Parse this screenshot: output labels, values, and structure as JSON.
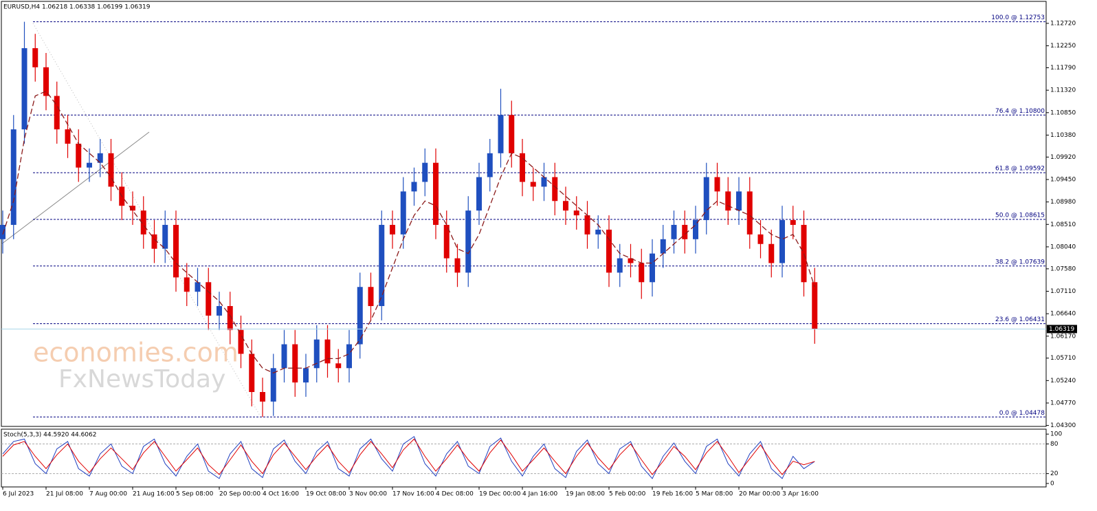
{
  "chart_data": [
    {
      "type": "candlestick",
      "title": "EURUSD,H4  1.06218 1.06338 1.06199 1.06319",
      "categories": [
        "6 Jul 2023",
        null,
        null,
        null,
        "21 Jul 08:00",
        null,
        null,
        null,
        "7 Aug 00:00",
        null,
        null,
        null,
        "21 Aug 16:00",
        null,
        null,
        null,
        "5 Sep 08:00",
        null,
        null,
        null,
        "20 Sep 00:00",
        null,
        null,
        null,
        "4 Oct 16:00",
        null,
        null,
        null,
        "19 Oct 08:00",
        null,
        null,
        null,
        "3 Nov 00:00",
        null,
        null,
        null,
        "17 Nov 16:00",
        null,
        null,
        null,
        "4 Dec 08:00",
        null,
        null,
        null,
        "19 Dec 00:00",
        null,
        null,
        null,
        "4 Jan 16:00",
        null,
        null,
        null,
        "19 Jan 08:00",
        null,
        null,
        null,
        "5 Feb 00:00",
        null,
        null,
        null,
        "19 Feb 16:00",
        null,
        null,
        null,
        "5 Mar 08:00",
        null,
        null,
        null,
        "20 Mar 00:00",
        null,
        null,
        null,
        "3 Apr 16:00",
        null,
        null,
        null
      ],
      "open": [
        1.082,
        1.085,
        1.105,
        1.122,
        1.118,
        1.112,
        1.105,
        1.102,
        1.097,
        1.098,
        1.1,
        1.093,
        1.089,
        1.088,
        1.083,
        1.08,
        1.085,
        1.074,
        1.071,
        1.073,
        1.066,
        1.068,
        1.063,
        1.058,
        1.05,
        1.048,
        1.055,
        1.06,
        1.052,
        1.055,
        1.061,
        1.056,
        1.055,
        1.06,
        1.072,
        1.068,
        1.085,
        1.083,
        1.092,
        1.094,
        1.098,
        1.085,
        1.078,
        1.075,
        1.088,
        1.095,
        1.1,
        1.108,
        1.1,
        1.094,
        1.093,
        1.095,
        1.09,
        1.088,
        1.087,
        1.083,
        1.084,
        1.075,
        1.078,
        1.077,
        1.073,
        1.079,
        1.082,
        1.085,
        1.082,
        1.086,
        1.095,
        1.092,
        1.088,
        1.092,
        1.083,
        1.081,
        1.077,
        1.086,
        1.085,
        1.073
      ],
      "high": [
        1.088,
        1.108,
        1.12753,
        1.125,
        1.121,
        1.115,
        1.108,
        1.105,
        1.101,
        1.103,
        1.103,
        1.096,
        1.092,
        1.091,
        1.086,
        1.088,
        1.088,
        1.077,
        1.076,
        1.076,
        1.071,
        1.071,
        1.066,
        1.061,
        1.053,
        1.058,
        1.063,
        1.063,
        1.058,
        1.064,
        1.064,
        1.059,
        1.063,
        1.075,
        1.075,
        1.088,
        1.088,
        1.095,
        1.097,
        1.101,
        1.101,
        1.088,
        1.081,
        1.091,
        1.098,
        1.103,
        1.1135,
        1.111,
        1.103,
        1.097,
        1.098,
        1.098,
        1.093,
        1.091,
        1.09,
        1.087,
        1.087,
        1.081,
        1.081,
        1.08,
        1.082,
        1.085,
        1.088,
        1.088,
        1.089,
        1.098,
        1.098,
        1.095,
        1.095,
        1.095,
        1.086,
        1.084,
        1.089,
        1.089,
        1.088,
        1.076
      ],
      "low": [
        1.079,
        1.082,
        1.102,
        1.115,
        1.109,
        1.102,
        1.099,
        1.094,
        1.094,
        1.095,
        1.09,
        1.086,
        1.085,
        1.08,
        1.077,
        1.077,
        1.071,
        1.068,
        1.068,
        1.063,
        1.063,
        1.06,
        1.055,
        1.047,
        1.04478,
        1.045,
        1.052,
        1.049,
        1.049,
        1.052,
        1.053,
        1.052,
        1.052,
        1.057,
        1.065,
        1.065,
        1.08,
        1.08,
        1.089,
        1.091,
        1.082,
        1.075,
        1.072,
        1.072,
        1.085,
        1.092,
        1.097,
        1.097,
        1.091,
        1.09,
        1.09,
        1.087,
        1.085,
        1.084,
        1.08,
        1.08,
        1.072,
        1.072,
        1.074,
        1.0695,
        1.07,
        1.076,
        1.079,
        1.079,
        1.079,
        1.083,
        1.089,
        1.085,
        1.085,
        1.08,
        1.078,
        1.074,
        1.074,
        1.082,
        1.07,
        1.0601
      ],
      "close": [
        1.085,
        1.105,
        1.122,
        1.118,
        1.112,
        1.105,
        1.102,
        1.097,
        1.098,
        1.1,
        1.093,
        1.089,
        1.088,
        1.083,
        1.08,
        1.085,
        1.074,
        1.071,
        1.073,
        1.066,
        1.068,
        1.063,
        1.058,
        1.05,
        1.048,
        1.055,
        1.06,
        1.052,
        1.055,
        1.061,
        1.056,
        1.055,
        1.06,
        1.072,
        1.068,
        1.085,
        1.083,
        1.092,
        1.094,
        1.098,
        1.085,
        1.078,
        1.075,
        1.088,
        1.095,
        1.1,
        1.108,
        1.1,
        1.094,
        1.093,
        1.095,
        1.09,
        1.088,
        1.087,
        1.083,
        1.084,
        1.075,
        1.078,
        1.077,
        1.073,
        1.079,
        1.082,
        1.085,
        1.082,
        1.086,
        1.095,
        1.092,
        1.088,
        1.092,
        1.083,
        1.081,
        1.077,
        1.086,
        1.085,
        1.073,
        1.0632
      ],
      "up_color": "#1f4fbf",
      "down_color": "#e00000",
      "moving_average": {
        "color": "#8b1a1a",
        "values": [
          1.083,
          1.09,
          1.103,
          1.112,
          1.113,
          1.11,
          1.106,
          1.102,
          1.1,
          1.098,
          1.095,
          1.091,
          1.088,
          1.085,
          1.082,
          1.08,
          1.077,
          1.075,
          1.073,
          1.071,
          1.069,
          1.066,
          1.062,
          1.058,
          1.055,
          1.054,
          1.055,
          1.055,
          1.055,
          1.056,
          1.057,
          1.057,
          1.058,
          1.061,
          1.065,
          1.07,
          1.076,
          1.082,
          1.087,
          1.09,
          1.089,
          1.085,
          1.08,
          1.079,
          1.083,
          1.089,
          1.095,
          1.1,
          1.099,
          1.097,
          1.095,
          1.093,
          1.091,
          1.089,
          1.087,
          1.085,
          1.082,
          1.079,
          1.078,
          1.077,
          1.077,
          1.079,
          1.081,
          1.083,
          1.085,
          1.088,
          1.09,
          1.089,
          1.088,
          1.087,
          1.085,
          1.083,
          1.082,
          1.083,
          1.079,
          1.072
        ]
      },
      "ylim": [
        1.0428,
        1.1318
      ],
      "yticks": [
        {
          "value": 1.1272,
          "label": "1.12720"
        },
        {
          "value": 1.1225,
          "label": "1.12250"
        },
        {
          "value": 1.1179,
          "label": "1.11790"
        },
        {
          "value": 1.1132,
          "label": "1.11320"
        },
        {
          "value": 1.1085,
          "label": "1.10850"
        },
        {
          "value": 1.1038,
          "label": "1.10380"
        },
        {
          "value": 1.0992,
          "label": "1.09920"
        },
        {
          "value": 1.0945,
          "label": "1.09450"
        },
        {
          "value": 1.0898,
          "label": "1.08980"
        },
        {
          "value": 1.0851,
          "label": "1.08510"
        },
        {
          "value": 1.0804,
          "label": "1.08040"
        },
        {
          "value": 1.0758,
          "label": "1.07580"
        },
        {
          "value": 1.0711,
          "label": "1.07110"
        },
        {
          "value": 1.0664,
          "label": "1.06640"
        },
        {
          "value": 1.0617,
          "label": "1.06170"
        },
        {
          "value": 1.0571,
          "label": "1.05710"
        },
        {
          "value": 1.0524,
          "label": "1.05240"
        },
        {
          "value": 1.0477,
          "label": "1.04770"
        },
        {
          "value": 1.043,
          "label": "1.04300"
        }
      ],
      "levels": [
        {
          "value": 1.12753,
          "label": "100.0 @ 1.12753"
        },
        {
          "value": 1.108,
          "label": "76.4 @ 1.10800"
        },
        {
          "value": 1.09592,
          "label": "61.8 @ 1.09592"
        },
        {
          "value": 1.08615,
          "label": "50.0 @ 1.08615"
        },
        {
          "value": 1.07639,
          "label": "38.2 @ 1.07639"
        },
        {
          "value": 1.06431,
          "label": "23.6 @ 1.06431"
        },
        {
          "value": 1.04478,
          "label": "0.0 @ 1.04478"
        }
      ],
      "level_color": "#000080",
      "current_price": {
        "value": 1.06319,
        "label": "1.06319"
      }
    },
    {
      "type": "line",
      "title": "Stoch(5,3,3) 44.5920 44.6062",
      "series": [
        {
          "color": "#1f3fbf",
          "values": [
            60,
            85,
            90,
            40,
            20,
            70,
            85,
            30,
            15,
            60,
            80,
            35,
            20,
            75,
            90,
            40,
            15,
            55,
            80,
            25,
            10,
            60,
            85,
            30,
            12,
            70,
            88,
            45,
            20,
            65,
            85,
            30,
            15,
            70,
            90,
            50,
            25,
            80,
            95,
            40,
            15,
            60,
            85,
            35,
            20,
            75,
            92,
            45,
            15,
            55,
            80,
            30,
            12,
            65,
            88,
            40,
            20,
            70,
            85,
            35,
            10,
            55,
            82,
            45,
            20,
            75,
            90,
            40,
            15,
            60,
            85,
            30,
            10,
            55,
            30,
            44.592
          ]
        },
        {
          "color": "#e00000",
          "values": [
            55,
            78,
            85,
            55,
            30,
            58,
            80,
            45,
            22,
            50,
            72,
            50,
            28,
            62,
            85,
            55,
            25,
            48,
            72,
            38,
            18,
            48,
            78,
            45,
            20,
            58,
            82,
            55,
            28,
            55,
            78,
            45,
            22,
            58,
            85,
            60,
            32,
            68,
            90,
            55,
            25,
            50,
            78,
            48,
            25,
            62,
            88,
            58,
            25,
            48,
            72,
            45,
            20,
            55,
            82,
            52,
            28,
            58,
            80,
            48,
            18,
            45,
            75,
            55,
            28,
            62,
            85,
            55,
            22,
            50,
            78,
            45,
            18,
            45,
            38,
            44.6062
          ]
        }
      ],
      "ylim": [
        -7,
        110
      ],
      "yticks": [
        0,
        20,
        80,
        100
      ],
      "levels": [
        20,
        80
      ]
    }
  ],
  "watermark": {
    "brand": "economies.com",
    "sub": "FxNewsToday"
  }
}
